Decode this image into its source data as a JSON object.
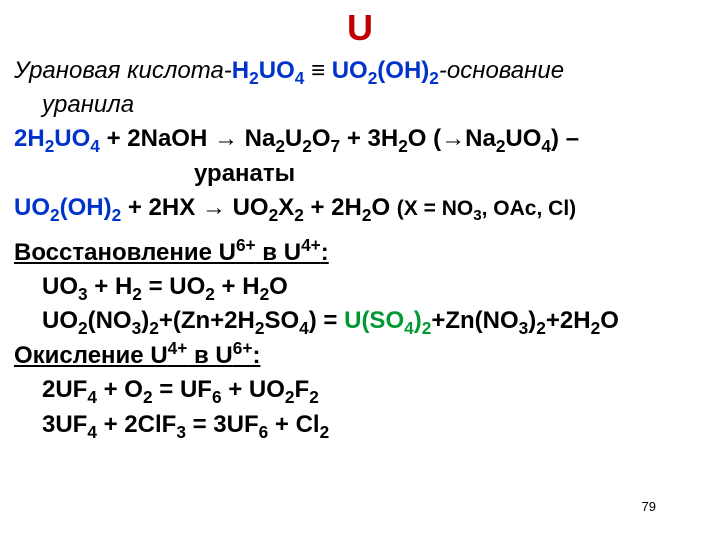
{
  "colors": {
    "title": "#c00000",
    "blue": "#0033cc",
    "green": "#009933",
    "text": "#000000",
    "background": "#ffffff"
  },
  "slide": {
    "title": "U",
    "page_number": "79",
    "line1": {
      "pre_it": "Урановая кислота-",
      "formula_a": "H<sub>2</sub>UO<sub>4</sub>",
      "identical": "  ≡  ",
      "formula_b": "UO<sub>2</sub>(OH)<sub>2</sub>",
      "post_it": "-основание"
    },
    "line1b": "уранила",
    "line2": {
      "a": "2H<sub>2</sub>UO<sub>4</sub>",
      "b": " + 2NaOH → Na<sub>2</sub>U<sub>2</sub>O<sub>7</sub> + 3H<sub>2</sub>O    (→Na<sub>2</sub>UO<sub>4</sub>) – "
    },
    "line2b": "уранаты",
    "line3": {
      "a": "UO<sub>2</sub>(OH)<sub>2</sub>",
      "b": " + 2HX → UO<sub>2</sub>X<sub>2</sub> + 2H<sub>2</sub>O   ",
      "c": "(X = NO<sub>3</sub>, OAc, Cl)"
    },
    "heading1": "Восстановление U<sup>6+</sup> в U<sup>4+</sup>:",
    "eq1": "UO<sub>3</sub> + H<sub>2</sub> = UO<sub>2</sub> + H<sub>2</sub>O",
    "eq2": {
      "a": "UO<sub>2</sub>(NO<sub>3</sub>)<sub>2</sub>+(Zn+2H<sub>2</sub>SO<sub>4</sub>) = ",
      "b": "U(SO<sub>4</sub>)<sub>2</sub>",
      "c": "+Zn(NO<sub>3</sub>)<sub>2</sub>+2H<sub>2</sub>O"
    },
    "heading2": "Окисление U<sup>4+</sup> в U<sup>6+</sup>:",
    "eq3": "2UF<sub>4</sub> + O<sub>2</sub> = UF<sub>6</sub> + UO<sub>2</sub>F<sub>2</sub>",
    "eq4": "3UF<sub>4</sub> + 2ClF<sub>3</sub> = 3UF<sub>6</sub> + Cl<sub>2</sub>"
  }
}
